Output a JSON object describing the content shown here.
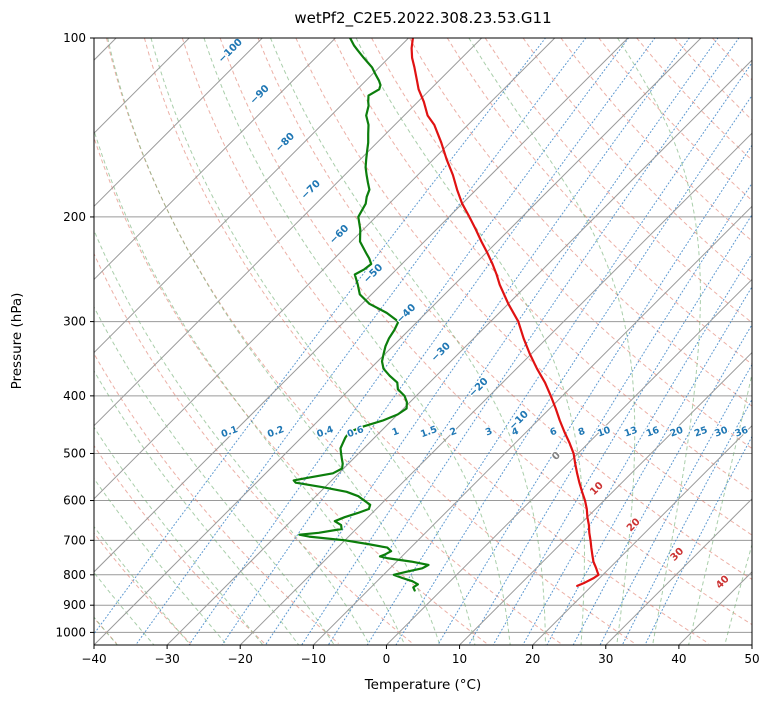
{
  "chart_data": {
    "type": "line",
    "subtype": "skew-t-log-p",
    "title": "wetPf2_C2E5.2022.308.23.53.G11",
    "xlabel": "Temperature (°C)",
    "ylabel": "Pressure (hPa)",
    "xlim": [
      -40,
      50
    ],
    "pressure_lim": [
      100,
      1050
    ],
    "skew_deg": 45,
    "grid": true,
    "legend": "none",
    "x_ticks": [
      -40,
      -30,
      -20,
      -10,
      0,
      10,
      20,
      30,
      40,
      50
    ],
    "pressure_ticks": [
      100,
      200,
      300,
      400,
      500,
      600,
      700,
      800,
      900,
      1000
    ],
    "isotherms": {
      "start": -130,
      "end": 50,
      "step": 10,
      "labels": [
        {
          "t": -100,
          "p": 108
        },
        {
          "t": -90,
          "p": 128
        },
        {
          "t": -80,
          "p": 154
        },
        {
          "t": -70,
          "p": 185
        },
        {
          "t": -60,
          "p": 220
        },
        {
          "t": -50,
          "p": 256
        },
        {
          "t": -40,
          "p": 299
        },
        {
          "t": -30,
          "p": 347
        },
        {
          "t": -20,
          "p": 398
        },
        {
          "t": -10,
          "p": 452
        },
        {
          "t": 0,
          "p": 519
        },
        {
          "t": 10,
          "p": 589
        },
        {
          "t": 20,
          "p": 678
        },
        {
          "t": 30,
          "p": 760
        },
        {
          "t": 40,
          "p": 846
        }
      ]
    },
    "dry_adiabats": {
      "start": -40,
      "end": 200,
      "step": 10
    },
    "moist_adiabats": {
      "start": -40,
      "end": 45,
      "step": 5
    },
    "mixing_ratio_lines": {
      "values": [
        0.1,
        0.2,
        0.4,
        0.6,
        1,
        1.5,
        2,
        3,
        4,
        6,
        8,
        10,
        13,
        16,
        20,
        25,
        30,
        36
      ],
      "label_pressure": 470
    },
    "series": [
      {
        "name": "temperature",
        "color": "#e01212",
        "points": [
          [
            100,
            -79.4
          ],
          [
            104,
            -78.2
          ],
          [
            108,
            -76.8
          ],
          [
            112,
            -75.2
          ],
          [
            118,
            -73.0
          ],
          [
            122,
            -71.6
          ],
          [
            128,
            -69.2
          ],
          [
            135,
            -66.8
          ],
          [
            140,
            -64.6
          ],
          [
            150,
            -61.2
          ],
          [
            160,
            -58.2
          ],
          [
            170,
            -55.2
          ],
          [
            180,
            -52.6
          ],
          [
            190,
            -50.0
          ],
          [
            200,
            -47.2
          ],
          [
            210,
            -44.6
          ],
          [
            220,
            -42.2
          ],
          [
            230,
            -39.8
          ],
          [
            240,
            -37.6
          ],
          [
            250,
            -35.6
          ],
          [
            260,
            -33.8
          ],
          [
            280,
            -30.0
          ],
          [
            300,
            -26.2
          ],
          [
            320,
            -23.2
          ],
          [
            340,
            -20.2
          ],
          [
            360,
            -17.2
          ],
          [
            380,
            -14.2
          ],
          [
            400,
            -11.6
          ],
          [
            420,
            -9.2
          ],
          [
            440,
            -7.0
          ],
          [
            460,
            -4.8
          ],
          [
            480,
            -2.6
          ],
          [
            500,
            -0.6
          ],
          [
            520,
            1.0
          ],
          [
            540,
            2.6
          ],
          [
            560,
            4.2
          ],
          [
            580,
            5.8
          ],
          [
            600,
            7.4
          ],
          [
            620,
            8.8
          ],
          [
            640,
            10.0
          ],
          [
            660,
            11.3
          ],
          [
            680,
            12.4
          ],
          [
            700,
            13.6
          ],
          [
            720,
            14.7
          ],
          [
            740,
            15.8
          ],
          [
            760,
            16.9
          ],
          [
            780,
            18.2
          ],
          [
            790,
            18.8
          ],
          [
            800,
            19.4
          ],
          [
            810,
            19.2
          ],
          [
            825,
            18.6
          ],
          [
            835,
            18.0
          ]
        ]
      },
      {
        "name": "dewpoint",
        "color": "#0c7e0c",
        "points": [
          [
            100,
            -88.0
          ],
          [
            103,
            -86.4
          ],
          [
            105,
            -85.2
          ],
          [
            108,
            -83.4
          ],
          [
            110,
            -82.2
          ],
          [
            112,
            -81.0
          ],
          [
            115,
            -79.6
          ],
          [
            118,
            -78.2
          ],
          [
            120,
            -77.4
          ],
          [
            122,
            -77.0
          ],
          [
            125,
            -77.6
          ],
          [
            128,
            -76.8
          ],
          [
            130,
            -76.2
          ],
          [
            135,
            -75.2
          ],
          [
            140,
            -73.6
          ],
          [
            145,
            -72.4
          ],
          [
            150,
            -71.2
          ],
          [
            155,
            -70.2
          ],
          [
            160,
            -69.2
          ],
          [
            165,
            -68.2
          ],
          [
            170,
            -67.0
          ],
          [
            175,
            -65.8
          ],
          [
            180,
            -64.6
          ],
          [
            185,
            -64.0
          ],
          [
            190,
            -63.2
          ],
          [
            195,
            -62.8
          ],
          [
            200,
            -62.4
          ],
          [
            210,
            -60.4
          ],
          [
            220,
            -58.8
          ],
          [
            230,
            -56.4
          ],
          [
            235,
            -55.2
          ],
          [
            240,
            -54.2
          ],
          [
            245,
            -54.4
          ],
          [
            250,
            -55.0
          ],
          [
            260,
            -53.2
          ],
          [
            270,
            -51.6
          ],
          [
            280,
            -49.0
          ],
          [
            290,
            -45.4
          ],
          [
            300,
            -42.6
          ],
          [
            310,
            -42.0
          ],
          [
            320,
            -41.6
          ],
          [
            330,
            -41.0
          ],
          [
            340,
            -40.2
          ],
          [
            350,
            -39.4
          ],
          [
            360,
            -38.2
          ],
          [
            370,
            -36.4
          ],
          [
            380,
            -34.4
          ],
          [
            390,
            -33.4
          ],
          [
            400,
            -31.6
          ],
          [
            410,
            -30.4
          ],
          [
            420,
            -29.6
          ],
          [
            430,
            -30.0
          ],
          [
            440,
            -31.2
          ],
          [
            450,
            -33.0
          ],
          [
            460,
            -34.2
          ],
          [
            470,
            -34.0
          ],
          [
            480,
            -33.6
          ],
          [
            490,
            -33.2
          ],
          [
            500,
            -32.4
          ],
          [
            510,
            -31.6
          ],
          [
            520,
            -30.8
          ],
          [
            530,
            -30.2
          ],
          [
            540,
            -30.8
          ],
          [
            550,
            -33.8
          ],
          [
            555,
            -35.2
          ],
          [
            560,
            -34.6
          ],
          [
            570,
            -30.2
          ],
          [
            580,
            -26.4
          ],
          [
            590,
            -24.2
          ],
          [
            600,
            -22.8
          ],
          [
            610,
            -21.4
          ],
          [
            620,
            -21.0
          ],
          [
            630,
            -22.0
          ],
          [
            640,
            -23.2
          ],
          [
            650,
            -24.0
          ],
          [
            660,
            -22.6
          ],
          [
            670,
            -22.0
          ],
          [
            680,
            -24.6
          ],
          [
            685,
            -27.0
          ],
          [
            690,
            -25.4
          ],
          [
            700,
            -20.0
          ],
          [
            710,
            -16.4
          ],
          [
            720,
            -13.2
          ],
          [
            730,
            -12.2
          ],
          [
            740,
            -12.6
          ],
          [
            745,
            -13.0
          ],
          [
            750,
            -11.8
          ],
          [
            760,
            -8.0
          ],
          [
            770,
            -5.2
          ],
          [
            775,
            -5.4
          ],
          [
            780,
            -5.6
          ],
          [
            790,
            -7.2
          ],
          [
            800,
            -8.6
          ],
          [
            810,
            -7.0
          ],
          [
            820,
            -5.2
          ],
          [
            830,
            -4.0
          ],
          [
            840,
            -4.2
          ],
          [
            850,
            -3.6
          ]
        ]
      }
    ],
    "colors": {
      "frame": "#000000",
      "grid": "#9a9a9a",
      "isotherm": "#9a9a9a",
      "dry_adiabat": "#e07b6a",
      "moist_adiabat": "#6fae72",
      "mixing_ratio": "#3d85c8",
      "isotherm_label_neg": "#1f77b4",
      "isotherm_label_zero": "#808080",
      "isotherm_label_pos": "#cc3333",
      "mixing_label": "#1f77b4",
      "tick_label": "#000000"
    }
  }
}
